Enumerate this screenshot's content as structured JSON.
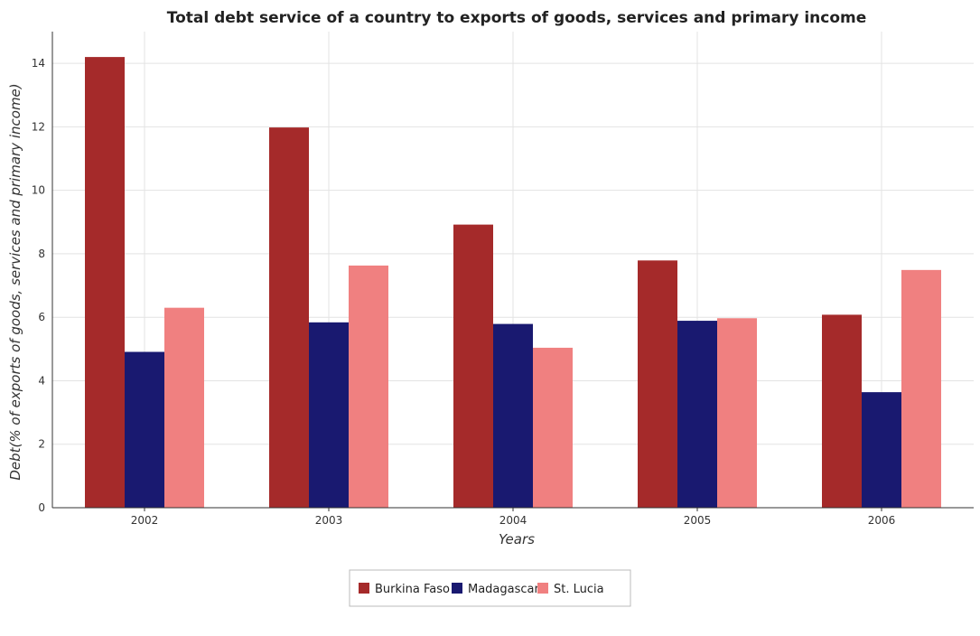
{
  "chart_data": {
    "type": "bar",
    "title": "Total debt service of a country to exports of goods, services and primary income",
    "xlabel": "Years",
    "ylabel": "Debt(% of exports of goods, services and primary income)",
    "categories": [
      "2002",
      "2003",
      "2004",
      "2005",
      "2006"
    ],
    "ylim": [
      0,
      15
    ],
    "yticks": [
      0,
      2,
      4,
      6,
      8,
      10,
      12,
      14
    ],
    "grid": true,
    "legend_position": "bottom-center",
    "series": [
      {
        "name": "Burkina Faso",
        "color": "#a52a2a",
        "values": [
          14.2,
          11.98,
          8.92,
          7.79,
          6.08
        ]
      },
      {
        "name": "Madagascar",
        "color": "#191970",
        "values": [
          4.91,
          5.84,
          5.79,
          5.89,
          3.64
        ]
      },
      {
        "name": "St. Lucia",
        "color": "#f08080",
        "values": [
          6.3,
          7.63,
          5.04,
          5.97,
          7.49
        ]
      }
    ]
  }
}
